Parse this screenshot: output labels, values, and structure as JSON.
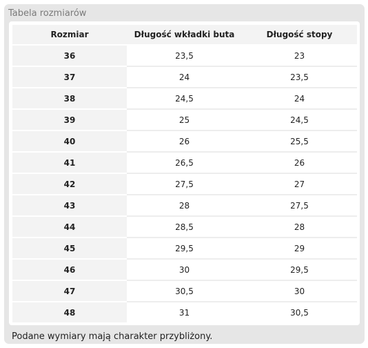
{
  "title": "Tabela rozmiarów",
  "headers": [
    "Rozmiar",
    "Długość wkładki buta",
    "Długość stopy"
  ],
  "rows": [
    {
      "size": "36",
      "insole": "23,5",
      "foot": "23"
    },
    {
      "size": "37",
      "insole": "24",
      "foot": "23,5"
    },
    {
      "size": "38",
      "insole": "24,5",
      "foot": "24"
    },
    {
      "size": "39",
      "insole": "25",
      "foot": "24,5"
    },
    {
      "size": "40",
      "insole": "26",
      "foot": "25,5"
    },
    {
      "size": "41",
      "insole": "26,5",
      "foot": "26"
    },
    {
      "size": "42",
      "insole": "27,5",
      "foot": "27"
    },
    {
      "size": "43",
      "insole": "28",
      "foot": "27,5"
    },
    {
      "size": "44",
      "insole": "28,5",
      "foot": "28"
    },
    {
      "size": "45",
      "insole": "29,5",
      "foot": "29"
    },
    {
      "size": "46",
      "insole": "30",
      "foot": "29,5"
    },
    {
      "size": "47",
      "insole": "30,5",
      "foot": "30"
    },
    {
      "size": "48",
      "insole": "31",
      "foot": "30,5"
    }
  ],
  "footnote": "Podane wymiary mają charakter przybliżony."
}
